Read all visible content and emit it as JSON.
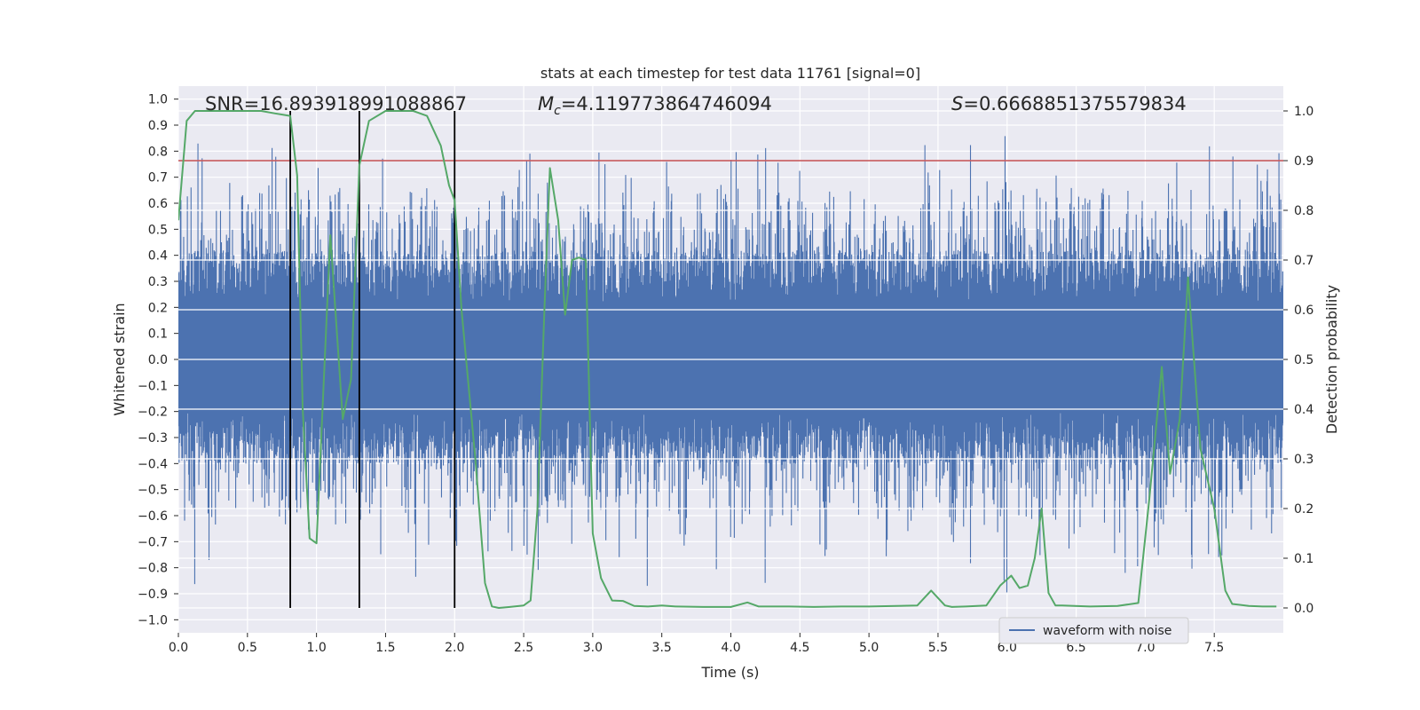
{
  "chart_data": {
    "type": "line",
    "title": "stats at each timestep for test data 11761 [signal=0]",
    "xlabel": "Time (s)",
    "ylabel_left": "Whitened strain",
    "ylabel_right": "Detection probability",
    "xlim": [
      0.0,
      8.0
    ],
    "ylim_left": [
      -1.05,
      1.05
    ],
    "ylim_right": [
      -0.05,
      1.05
    ],
    "xticks": [
      0.0,
      0.5,
      1.0,
      1.5,
      2.0,
      2.5,
      3.0,
      3.5,
      4.0,
      4.5,
      5.0,
      5.5,
      6.0,
      6.5,
      7.0,
      7.5
    ],
    "xtick_labels": [
      "0.0",
      "0.5",
      "1.0",
      "1.5",
      "2.0",
      "2.5",
      "3.0",
      "3.5",
      "4.0",
      "4.5",
      "5.0",
      "5.5",
      "6.0",
      "6.5",
      "7.0",
      "7.5"
    ],
    "yticks_left": [
      -1.0,
      -0.9,
      -0.8,
      -0.7,
      -0.6,
      -0.5,
      -0.4,
      -0.3,
      -0.2,
      -0.1,
      0.0,
      0.1,
      0.2,
      0.3,
      0.4,
      0.5,
      0.6,
      0.7,
      0.8,
      0.9,
      1.0
    ],
    "ytick_labels_left": [
      "−1.0",
      "−0.9",
      "−0.8",
      "−0.7",
      "−0.6",
      "−0.5",
      "−0.4",
      "−0.3",
      "−0.2",
      "−0.1",
      "0.0",
      "0.1",
      "0.2",
      "0.3",
      "0.4",
      "0.5",
      "0.6",
      "0.7",
      "0.8",
      "0.9",
      "1.0"
    ],
    "yticks_right": [
      0.0,
      0.1,
      0.2,
      0.3,
      0.4,
      0.5,
      0.6,
      0.7,
      0.8,
      0.9,
      1.0
    ],
    "ytick_labels_right": [
      "0.0",
      "0.1",
      "0.2",
      "0.3",
      "0.4",
      "0.5",
      "0.6",
      "0.7",
      "0.8",
      "0.9",
      "1.0"
    ],
    "annotations": {
      "snr": "SNR=16.893918991088867",
      "mc_symbol": "M",
      "mc_sub": "c",
      "mc_value": "=4.119773864746094",
      "s_symbol": "S",
      "s_value": "=0.6668851375579834"
    },
    "threshold": {
      "axis": "right",
      "value": 0.9
    },
    "vertical_lines": [
      0.81,
      1.31,
      2.0
    ],
    "legend": {
      "label": "waveform with noise",
      "location": "lower-right"
    },
    "series": [
      {
        "name": "waveform with noise",
        "axis": "left",
        "kind": "noise",
        "sample_count": 2400,
        "spike_bounds": [
          -1.0,
          1.0
        ]
      },
      {
        "name": "detection probability",
        "axis": "right",
        "x": [
          0.0,
          0.06,
          0.12,
          0.3,
          0.6,
          0.7,
          0.81,
          0.86,
          0.9,
          0.95,
          1.0,
          1.1,
          1.19,
          1.25,
          1.31,
          1.38,
          1.5,
          1.6,
          1.7,
          1.8,
          1.9,
          1.96,
          2.0,
          2.05,
          2.15,
          2.22,
          2.27,
          2.32,
          2.4,
          2.5,
          2.55,
          2.6,
          2.65,
          2.69,
          2.75,
          2.8,
          2.85,
          2.9,
          2.95,
          3.0,
          3.06,
          3.14,
          3.22,
          3.3,
          3.4,
          3.5,
          3.6,
          3.8,
          4.0,
          4.12,
          4.2,
          4.4,
          4.6,
          4.8,
          5.0,
          5.2,
          5.35,
          5.45,
          5.55,
          5.6,
          5.7,
          5.85,
          5.95,
          6.03,
          6.09,
          6.15,
          6.2,
          6.25,
          6.3,
          6.35,
          6.4,
          6.6,
          6.8,
          6.95,
          7.03,
          7.12,
          7.18,
          7.25,
          7.31,
          7.4,
          7.5,
          7.58,
          7.63,
          7.75,
          7.85,
          7.95
        ],
        "values": [
          0.78,
          0.98,
          1.0,
          1.0,
          1.0,
          0.995,
          0.99,
          0.87,
          0.4,
          0.14,
          0.13,
          0.75,
          0.38,
          0.46,
          0.89,
          0.98,
          1.0,
          1.0,
          1.0,
          0.99,
          0.93,
          0.85,
          0.82,
          0.6,
          0.3,
          0.05,
          0.003,
          0.0,
          0.002,
          0.005,
          0.015,
          0.2,
          0.6,
          0.885,
          0.78,
          0.59,
          0.7,
          0.705,
          0.7,
          0.15,
          0.06,
          0.015,
          0.014,
          0.004,
          0.003,
          0.005,
          0.003,
          0.002,
          0.002,
          0.011,
          0.003,
          0.003,
          0.002,
          0.003,
          0.003,
          0.004,
          0.005,
          0.035,
          0.005,
          0.002,
          0.003,
          0.005,
          0.045,
          0.065,
          0.04,
          0.045,
          0.1,
          0.2,
          0.03,
          0.005,
          0.005,
          0.003,
          0.004,
          0.01,
          0.22,
          0.485,
          0.27,
          0.38,
          0.665,
          0.32,
          0.2,
          0.035,
          0.008,
          0.004,
          0.003,
          0.003
        ]
      }
    ]
  }
}
